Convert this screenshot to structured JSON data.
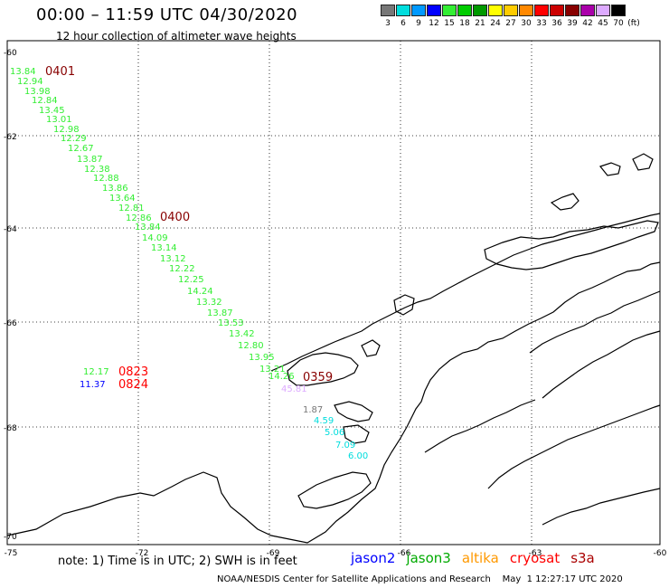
{
  "header": {
    "title": "00:00 – 11:59 UTC 04/30/2020",
    "subtitle": "12 hour collection of altimeter wave heights"
  },
  "legend": {
    "unit": "(ft)",
    "entries": [
      {
        "label": "3",
        "color": "#777777"
      },
      {
        "label": "6",
        "color": "#00dddd"
      },
      {
        "label": "9",
        "color": "#0099ff"
      },
      {
        "label": "12",
        "color": "#0000ff"
      },
      {
        "label": "15",
        "color": "#33ee33"
      },
      {
        "label": "18",
        "color": "#00cc00"
      },
      {
        "label": "21",
        "color": "#009900"
      },
      {
        "label": "24",
        "color": "#ffff00"
      },
      {
        "label": "27",
        "color": "#ffcc00"
      },
      {
        "label": "30",
        "color": "#ff8800"
      },
      {
        "label": "33",
        "color": "#ff0000"
      },
      {
        "label": "36",
        "color": "#cc0000"
      },
      {
        "label": "39",
        "color": "#880000"
      },
      {
        "label": "42",
        "color": "#aa00aa"
      },
      {
        "label": "45",
        "color": "#ddaaff"
      },
      {
        "label": "70",
        "color": "#000000"
      }
    ]
  },
  "axes": {
    "lat_labels": [
      "-60",
      "-62",
      "-64",
      "-66",
      "-68",
      "-70"
    ],
    "lon_labels": [
      "-75",
      "-72",
      "-69",
      "-66",
      "-63",
      "-60"
    ]
  },
  "observations": [
    {
      "text": "13.84",
      "color": "#33ee33"
    },
    {
      "text": "12.94",
      "color": "#33ee33"
    },
    {
      "text": "13.98",
      "color": "#33ee33"
    },
    {
      "text": "12.84",
      "color": "#33ee33"
    },
    {
      "text": "13.45",
      "color": "#33ee33"
    },
    {
      "text": "13.01",
      "color": "#33ee33"
    },
    {
      "text": "12.98",
      "color": "#33ee33"
    },
    {
      "text": "12.29",
      "color": "#33ee33"
    },
    {
      "text": "12.67",
      "color": "#33ee33"
    },
    {
      "text": "13.87",
      "color": "#33ee33"
    },
    {
      "text": "12.38",
      "color": "#33ee33"
    },
    {
      "text": "12.88",
      "color": "#33ee33"
    },
    {
      "text": "13.86",
      "color": "#33ee33"
    },
    {
      "text": "13.64",
      "color": "#33ee33"
    },
    {
      "text": "12.81",
      "color": "#33ee33"
    },
    {
      "text": "12.86",
      "color": "#33ee33"
    },
    {
      "text": "13.84",
      "color": "#33ee33"
    },
    {
      "text": "14.09",
      "color": "#33ee33"
    },
    {
      "text": "13.14",
      "color": "#33ee33"
    },
    {
      "text": "13.12",
      "color": "#33ee33"
    },
    {
      "text": "12.22",
      "color": "#33ee33"
    },
    {
      "text": "12.25",
      "color": "#33ee33"
    },
    {
      "text": "14.24",
      "color": "#33ee33"
    },
    {
      "text": "13.32",
      "color": "#33ee33"
    },
    {
      "text": "13.87",
      "color": "#33ee33"
    },
    {
      "text": "13.53",
      "color": "#33ee33"
    },
    {
      "text": "13.42",
      "color": "#33ee33"
    },
    {
      "text": "12.80",
      "color": "#33ee33"
    },
    {
      "text": "13.95",
      "color": "#33ee33"
    },
    {
      "text": "13.21",
      "color": "#33ee33"
    },
    {
      "text": "14.26",
      "color": "#33ee33"
    },
    {
      "text": "45.81",
      "color": "#ddaaff"
    },
    {
      "text": "1.87",
      "color": "#777777"
    },
    {
      "text": "4.59",
      "color": "#00dddd"
    },
    {
      "text": "5.06",
      "color": "#00dddd"
    },
    {
      "text": "7.09",
      "color": "#00dddd"
    },
    {
      "text": "6.00",
      "color": "#00dddd"
    },
    {
      "text": "12.17",
      "color": "#33ee33"
    },
    {
      "text": "11.37",
      "color": "#0000ff"
    }
  ],
  "times": [
    {
      "text": "0401",
      "color": "#880000"
    },
    {
      "text": "0400",
      "color": "#880000"
    },
    {
      "text": "0359",
      "color": "#880000"
    },
    {
      "text": "0823",
      "color": "#ff0000"
    },
    {
      "text": "0824",
      "color": "#ff0000"
    }
  ],
  "footer": {
    "note": "note:  1) Time is in UTC;  2) SWH is in feet",
    "satellites": [
      {
        "name": "jason2",
        "color": "#0000ff"
      },
      {
        "name": "jason3",
        "color": "#00aa00"
      },
      {
        "name": "altika",
        "color": "#ff9900"
      },
      {
        "name": "cryosat",
        "color": "#ff0000"
      },
      {
        "name": "s3a",
        "color": "#aa0000"
      }
    ],
    "credit": "NOAA/NESDIS Center for Satellite Applications and Research    May  1 12:27:17 UTC 2020"
  }
}
